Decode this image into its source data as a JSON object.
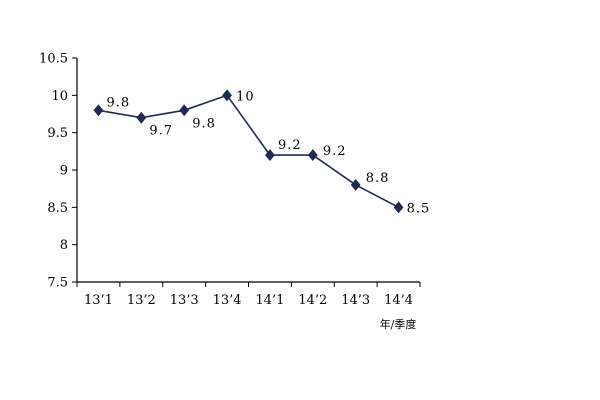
{
  "chart_data": {
    "type": "line",
    "categories": [
      "13’1",
      "13’2",
      "13’3",
      "13’4",
      "14’1",
      "14’2",
      "14’3",
      "14’4"
    ],
    "series": [
      {
        "values": [
          9.8,
          9.7,
          9.8,
          10,
          9.2,
          9.2,
          8.8,
          8.5
        ],
        "value_labels": [
          "9.8",
          "9.7",
          "9.8",
          "10",
          "9.2",
          "9.2",
          "8.8",
          "8.5"
        ]
      }
    ],
    "ylim": [
      7.5,
      10.5
    ],
    "y_ticks": [
      "7.5",
      "8",
      "8.5",
      "9",
      "9.5",
      "10",
      "10.5"
    ],
    "xlabel": "年/季度",
    "ylabel": "",
    "title": "",
    "grid": false,
    "line_color": "#1f2a52",
    "marker": "diamond"
  }
}
